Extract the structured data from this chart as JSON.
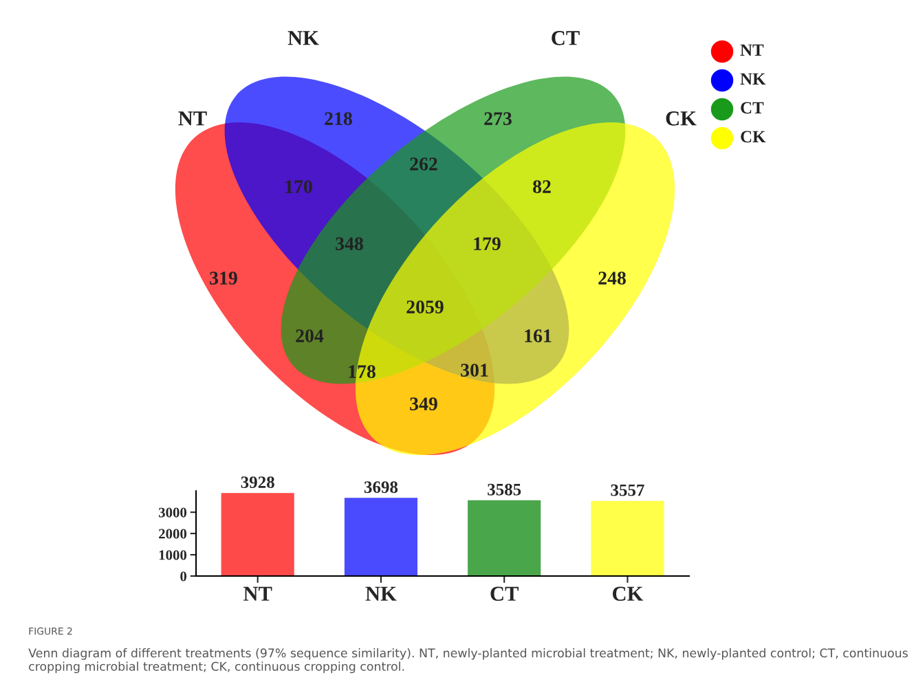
{
  "chart_data": [
    {
      "type": "other",
      "series": [
        {
          "name": "NT",
          "color": "#ff0000"
        },
        {
          "name": "NK",
          "color": "#0000ff"
        },
        {
          "name": "CT",
          "color": "#1a9a1a"
        },
        {
          "name": "CK",
          "color": "#ffff00"
        }
      ],
      "annotations": [
        "319",
        "218",
        "273",
        "248",
        "170",
        "262",
        "82",
        "204",
        "161",
        "349",
        "348",
        "179",
        "178",
        "301",
        "2059"
      ],
      "legend": "top right"
    },
    {
      "type": "bar",
      "categories": [
        "NT",
        "NK",
        "CT",
        "CK"
      ],
      "values": [
        3928,
        3698,
        3585,
        3557
      ],
      "colors": [
        "#ff4a4a",
        "#4a4aff",
        "#4aa64a",
        "#ffff4a"
      ],
      "ylim": [
        0,
        4000
      ],
      "yticks": [
        0,
        1000,
        2000,
        3000
      ],
      "data_labels": true,
      "annotations": [
        "FIGURE 2",
        "Venn diagram of different treatments (97% sequence similarity). NT, newly-planted microbial treatment; NK, newly-planted control; CT, continuous cropping microbial treatment; CK, continuous cropping control."
      ]
    }
  ]
}
